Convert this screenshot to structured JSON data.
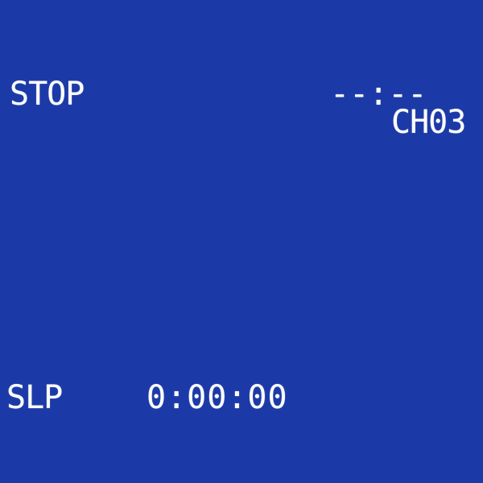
{
  "osd": {
    "status": "STOP",
    "clock": "--:--",
    "channel": "CH03",
    "tape_speed": "SLP",
    "counter": "0:00:00"
  },
  "colors": {
    "background": "#1c3aa7",
    "text": "#ffffff"
  }
}
